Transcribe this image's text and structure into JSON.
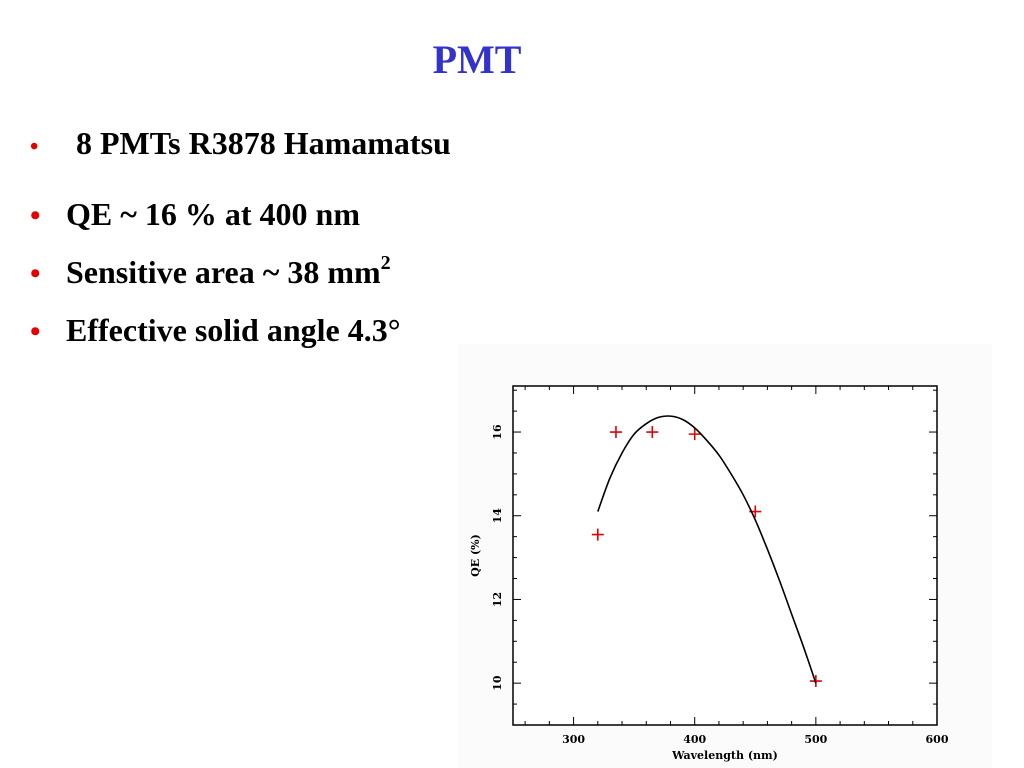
{
  "slide": {
    "title": "PMT",
    "bullets": [
      {
        "text": "8 PMTs R3878 Hamamatsu"
      },
      {
        "text": "QE  ~ 16 % at 400 nm"
      },
      {
        "text": "Sensitive area ~ 38 mm",
        "sup": "2"
      },
      {
        "text": "Effective solid angle 4.3°"
      }
    ],
    "bullet_color": "#e60000",
    "title_color": "#3333cc"
  },
  "chart_data": {
    "type": "scatter",
    "xlabel": "Wavelength (nm)",
    "ylabel": "QE (%)",
    "xlim": [
      250,
      600
    ],
    "ylim": [
      9,
      17.1
    ],
    "xticks": [
      300,
      400,
      500,
      600
    ],
    "yticks": [
      10,
      12,
      14,
      16
    ],
    "grid": false,
    "series": [
      {
        "kind": "points",
        "marker": "plus",
        "color": "#e60000",
        "x": [
          320,
          335,
          365,
          400,
          450,
          500
        ],
        "y": [
          13.55,
          16.0,
          16.0,
          15.95,
          14.1,
          10.05
        ]
      },
      {
        "kind": "fit-curve",
        "color": "#000000",
        "x": [
          320,
          330,
          340,
          350,
          360,
          370,
          380,
          390,
          400,
          410,
          420,
          430,
          440,
          450,
          460,
          470,
          480,
          490,
          500
        ],
        "y": [
          14.1,
          14.9,
          15.5,
          15.95,
          16.2,
          16.35,
          16.38,
          16.3,
          16.1,
          15.8,
          15.45,
          15.0,
          14.5,
          13.9,
          13.2,
          12.45,
          11.65,
          10.85,
          10.0
        ]
      }
    ]
  }
}
